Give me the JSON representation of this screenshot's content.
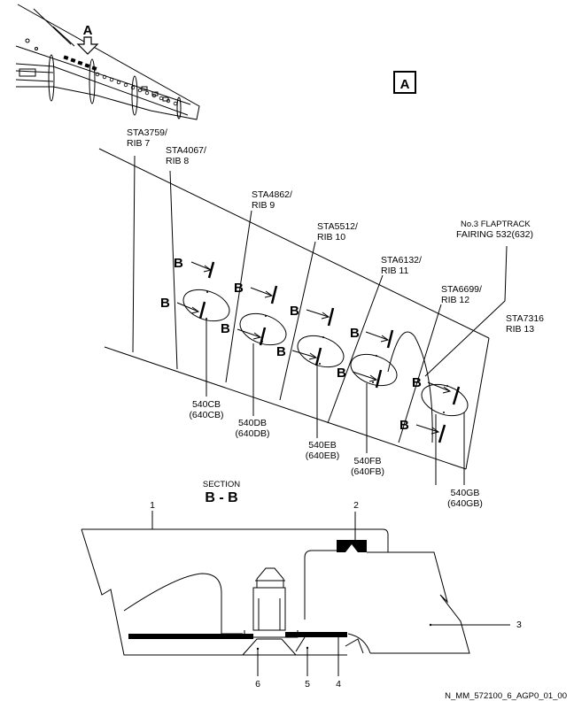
{
  "view_label": "A",
  "view_marker": "A",
  "stations": [
    {
      "sta": "STA3759/",
      "rib": "RIB 7"
    },
    {
      "sta": "STA4067/",
      "rib": "RIB 8"
    },
    {
      "sta": "STA4862/",
      "rib": "RIB 9"
    },
    {
      "sta": "STA5512/",
      "rib": "RIB 10"
    },
    {
      "sta": "STA6132/",
      "rib": "RIB 11"
    },
    {
      "sta": "STA6699/",
      "rib": "RIB 12"
    },
    {
      "sta": "STA7316",
      "rib": "RIB 13"
    }
  ],
  "fairing": {
    "line1": "No.3 FLAPTRACK",
    "line2": "FAIRING 532(632)"
  },
  "section_marker": "B",
  "panels": [
    {
      "id": "540CB",
      "alt": "(640CB)"
    },
    {
      "id": "540DB",
      "alt": "(640DB)"
    },
    {
      "id": "540EB",
      "alt": "(640EB)"
    },
    {
      "id": "540FB",
      "alt": "(640FB)"
    },
    {
      "id": "540GB",
      "alt": "(640GB)"
    }
  ],
  "section": {
    "heading": "SECTION",
    "title": "B - B"
  },
  "callouts": [
    "1",
    "2",
    "3",
    "4",
    "5",
    "6"
  ],
  "figure_id": "N_MM_572100_6_AGP0_01_00"
}
